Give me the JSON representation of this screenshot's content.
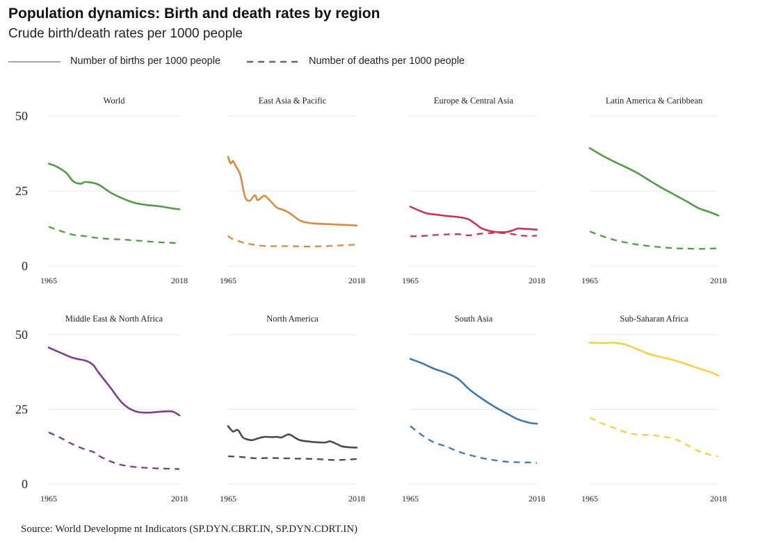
{
  "header": {
    "title": "Population dynamics: Birth and death rates by region",
    "subtitle": "Crude birth/death rates per 1000 people"
  },
  "legend": {
    "births_label": "Number of births per 1000 people",
    "deaths_label": "Number of deaths per 1000 people"
  },
  "source": "Source: World Developme nt Indicators (SP.DYN.CBRT.IN, SP.DYN.CDRT.IN)",
  "chart_data": [
    {
      "type": "line",
      "title": "World",
      "color": "#539a47",
      "x": [
        1965,
        1968,
        1972,
        1975,
        1978,
        1980,
        1985,
        1990,
        1995,
        2000,
        2005,
        2010,
        2015,
        2018
      ],
      "series": [
        {
          "name": "Number of births per 1000 people",
          "values": [
            34.1,
            33.2,
            31.1,
            28.2,
            27.4,
            28.0,
            27.2,
            24.5,
            22.5,
            21.0,
            20.3,
            19.9,
            19.2,
            18.9
          ]
        },
        {
          "name": "Number of deaths per 1000 people",
          "values": [
            13.1,
            12.2,
            11.1,
            10.4,
            10.1,
            9.9,
            9.3,
            9.0,
            8.8,
            8.5,
            8.2,
            7.9,
            7.7,
            7.6
          ]
        }
      ],
      "xlim": [
        1965,
        2018
      ],
      "ylim": [
        0,
        50
      ],
      "xticks": [
        "1965",
        "2018"
      ]
    },
    {
      "type": "line",
      "title": "East Asia & Pacific",
      "color": "#d78a43",
      "x": [
        1965,
        1966,
        1967,
        1968,
        1970,
        1972,
        1974,
        1976,
        1977,
        1978,
        1980,
        1982,
        1985,
        1987,
        1990,
        1995,
        2000,
        2005,
        2010,
        2015,
        2018
      ],
      "series": [
        {
          "name": "Number of births per 1000 people",
          "values": [
            36.4,
            34.2,
            35.0,
            33.5,
            30.4,
            23.0,
            21.8,
            23.6,
            22.0,
            22.3,
            23.4,
            22.0,
            19.5,
            18.9,
            17.8,
            15.0,
            14.2,
            14.0,
            13.8,
            13.6,
            13.5
          ]
        },
        {
          "name": "Number of deaths per 1000 people",
          "values": [
            10.1,
            9.3,
            9.0,
            8.7,
            8.1,
            7.6,
            7.3,
            7.0,
            6.9,
            6.8,
            6.7,
            6.6,
            6.6,
            6.6,
            6.6,
            6.5,
            6.5,
            6.6,
            6.8,
            7.0,
            7.1
          ]
        }
      ],
      "xlim": [
        1965,
        2018
      ],
      "ylim": [
        0,
        50
      ],
      "xticks": [
        "1965",
        "2018"
      ]
    },
    {
      "type": "line",
      "title": "Europe & Central Asia",
      "color": "#c33550",
      "x": [
        1965,
        1968,
        1972,
        1975,
        1980,
        1985,
        1988,
        1990,
        1993,
        1995,
        2000,
        2005,
        2008,
        2010,
        2012,
        2015,
        2018
      ],
      "series": [
        {
          "name": "Number of births per 1000 people",
          "values": [
            19.8,
            18.7,
            17.5,
            17.2,
            16.7,
            16.3,
            15.9,
            15.3,
            13.6,
            12.5,
            11.4,
            11.3,
            11.9,
            12.5,
            12.4,
            12.3,
            12.1
          ]
        },
        {
          "name": "Number of deaths per 1000 people",
          "values": [
            9.9,
            9.9,
            10.1,
            10.3,
            10.5,
            10.6,
            10.3,
            10.2,
            10.6,
            10.8,
            11.0,
            10.9,
            10.6,
            10.3,
            10.1,
            10.0,
            10.1
          ]
        }
      ],
      "xlim": [
        1965,
        2018
      ],
      "ylim": [
        0,
        50
      ],
      "xticks": [
        "1965",
        "2018"
      ]
    },
    {
      "type": "line",
      "title": "Latin America & Caribbean",
      "color": "#539a47",
      "x": [
        1965,
        1970,
        1975,
        1980,
        1985,
        1990,
        1995,
        2000,
        2005,
        2010,
        2015,
        2018
      ],
      "series": [
        {
          "name": "Number of births per 1000 people",
          "values": [
            39.3,
            36.9,
            34.8,
            32.9,
            30.8,
            28.3,
            25.9,
            23.7,
            21.5,
            19.2,
            17.8,
            16.8
          ]
        },
        {
          "name": "Number of deaths per 1000 people",
          "values": [
            11.5,
            10.0,
            8.7,
            7.8,
            7.1,
            6.6,
            6.2,
            5.9,
            5.8,
            5.7,
            5.8,
            5.9
          ]
        }
      ],
      "xlim": [
        1965,
        2018
      ],
      "ylim": [
        0,
        50
      ],
      "xticks": [
        "1965",
        "2018"
      ]
    },
    {
      "type": "line",
      "title": "Middle East & North Africa",
      "color": "#7a3e8a",
      "x": [
        1965,
        1970,
        1975,
        1980,
        1983,
        1985,
        1990,
        1995,
        2000,
        2005,
        2010,
        2015,
        2018
      ],
      "series": [
        {
          "name": "Number of births per 1000 people",
          "values": [
            45.7,
            43.9,
            42.2,
            41.3,
            39.9,
            37.6,
            32.3,
            27.0,
            24.4,
            23.9,
            24.2,
            24.3,
            23.0
          ]
        },
        {
          "name": "Number of deaths per 1000 people",
          "values": [
            17.3,
            15.4,
            13.2,
            11.5,
            10.8,
            9.6,
            7.6,
            6.3,
            5.7,
            5.4,
            5.2,
            5.1,
            5.0
          ]
        }
      ],
      "xlim": [
        1965,
        2018
      ],
      "ylim": [
        0,
        50
      ],
      "xticks": [
        "1965",
        "2018"
      ]
    },
    {
      "type": "line",
      "title": "North America",
      "color": "#4a4a4a",
      "x": [
        1965,
        1967,
        1969,
        1971,
        1973,
        1975,
        1977,
        1980,
        1983,
        1985,
        1987,
        1990,
        1993,
        1995,
        2000,
        2005,
        2007,
        2010,
        2012,
        2015,
        2018
      ],
      "series": [
        {
          "name": "Number of births per 1000 people",
          "values": [
            19.4,
            17.6,
            18.1,
            15.7,
            14.9,
            14.7,
            15.2,
            15.8,
            15.7,
            15.8,
            15.6,
            16.6,
            15.3,
            14.6,
            14.1,
            13.9,
            14.3,
            13.3,
            12.6,
            12.3,
            12.2
          ]
        },
        {
          "name": "Number of deaths per 1000 people",
          "values": [
            9.3,
            9.2,
            9.2,
            9.0,
            8.9,
            8.7,
            8.6,
            8.7,
            8.7,
            8.7,
            8.6,
            8.6,
            8.5,
            8.5,
            8.4,
            8.2,
            8.1,
            8.0,
            8.1,
            8.2,
            8.4
          ]
        }
      ],
      "xlim": [
        1965,
        2018
      ],
      "ylim": [
        0,
        50
      ],
      "xticks": [
        "1965",
        "2018"
      ]
    },
    {
      "type": "line",
      "title": "South Asia",
      "color": "#3e77b0",
      "x": [
        1965,
        1970,
        1975,
        1980,
        1985,
        1990,
        1995,
        2000,
        2005,
        2010,
        2015,
        2018
      ],
      "series": [
        {
          "name": "Number of births per 1000 people",
          "values": [
            41.9,
            40.4,
            38.6,
            37.2,
            35.2,
            31.5,
            28.6,
            26.0,
            23.8,
            21.7,
            20.5,
            20.2
          ]
        },
        {
          "name": "Number of deaths per 1000 people",
          "values": [
            19.4,
            16.3,
            13.9,
            12.6,
            10.9,
            9.7,
            8.7,
            8.0,
            7.5,
            7.3,
            7.2,
            7.1
          ]
        }
      ],
      "xlim": [
        1965,
        2018
      ],
      "ylim": [
        0,
        50
      ],
      "xticks": [
        "1965",
        "2018"
      ]
    },
    {
      "type": "line",
      "title": "Sub-Saharan Africa",
      "color": "#f4cf47",
      "x": [
        1965,
        1970,
        1975,
        1980,
        1985,
        1990,
        1995,
        2000,
        2005,
        2010,
        2015,
        2018
      ],
      "series": [
        {
          "name": "Number of births per 1000 people",
          "values": [
            47.3,
            47.2,
            47.3,
            46.6,
            45.0,
            43.4,
            42.4,
            41.4,
            40.1,
            38.7,
            37.4,
            36.3
          ]
        },
        {
          "name": "Number of deaths per 1000 people",
          "values": [
            22.3,
            20.3,
            18.8,
            17.3,
            16.5,
            16.4,
            15.9,
            15.1,
            13.1,
            11.0,
            9.7,
            9.3
          ]
        }
      ],
      "xlim": [
        1965,
        2018
      ],
      "ylim": [
        0,
        50
      ],
      "xticks": [
        "1965",
        "2018"
      ]
    }
  ]
}
